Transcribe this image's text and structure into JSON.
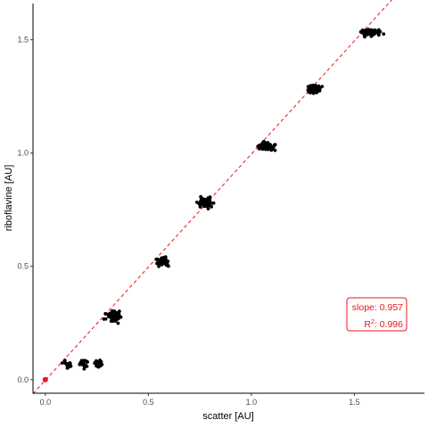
{
  "chart_data": {
    "type": "scatter",
    "xlabel": "scatter [AU]",
    "ylabel": "riboflavine [AU]",
    "xlim": [
      -0.06,
      1.84
    ],
    "ylim": [
      -0.06,
      1.66
    ],
    "x_ticks": [
      0.0,
      0.5,
      1.0,
      1.5
    ],
    "y_ticks": [
      0.0,
      0.5,
      1.0,
      1.5
    ],
    "x_tick_labels": [
      "0.0",
      "0.5",
      "1.0",
      "1.5"
    ],
    "y_tick_labels": [
      "0.0",
      "0.5",
      "1.0",
      "1.5"
    ],
    "grid": false,
    "clusters": [
      {
        "x": 0.11,
        "y": 0.065,
        "x_spread": 0.03,
        "y_spread": 0.025,
        "n": 22
      },
      {
        "x": 0.18,
        "y": 0.07,
        "x_spread": 0.03,
        "y_spread": 0.03,
        "n": 22
      },
      {
        "x": 0.26,
        "y": 0.07,
        "x_spread": 0.03,
        "y_spread": 0.02,
        "n": 22
      },
      {
        "x": 0.33,
        "y": 0.28,
        "x_spread": 0.05,
        "y_spread": 0.035,
        "n": 45
      },
      {
        "x": 0.57,
        "y": 0.52,
        "x_spread": 0.05,
        "y_spread": 0.025,
        "n": 45
      },
      {
        "x": 0.78,
        "y": 0.78,
        "x_spread": 0.05,
        "y_spread": 0.03,
        "n": 55
      },
      {
        "x": 1.07,
        "y": 1.03,
        "x_spread": 0.06,
        "y_spread": 0.025,
        "n": 60
      },
      {
        "x": 1.3,
        "y": 1.28,
        "x_spread": 0.05,
        "y_spread": 0.025,
        "n": 55
      },
      {
        "x": 1.58,
        "y": 1.53,
        "x_spread": 0.07,
        "y_spread": 0.025,
        "n": 55
      }
    ],
    "origin_point": {
      "x": 0.0,
      "y": 0.0,
      "color": "#e8161c"
    },
    "fit_line": {
      "slope": 0.957,
      "intercept": 0.0,
      "color": "#e8161c",
      "style": "dashed"
    },
    "annotation": {
      "slope_label": "slope: 0.957",
      "r2_prefix": "R",
      "r2_sup": "2",
      "r2_value": ": 0.996",
      "placement": "bottom-right",
      "color": "#e8161c"
    }
  }
}
